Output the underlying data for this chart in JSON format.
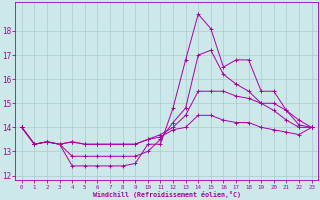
{
  "background_color": "#cce8e8",
  "grid_color": "#aacccc",
  "line_color": "#aa00aa",
  "xlabel": "Windchill (Refroidissement éolien,°C)",
  "xlim": [
    -0.5,
    23.5
  ],
  "ylim": [
    11.8,
    19.2
  ],
  "yticks": [
    12,
    13,
    14,
    15,
    16,
    17,
    18
  ],
  "xticks": [
    0,
    1,
    2,
    3,
    4,
    5,
    6,
    7,
    8,
    9,
    10,
    11,
    12,
    13,
    14,
    15,
    16,
    17,
    18,
    19,
    20,
    21,
    22,
    23
  ],
  "series": [
    {
      "x": [
        0,
        1,
        2,
        3,
        4,
        5,
        6,
        7,
        8,
        9,
        10,
        11,
        12,
        13,
        14,
        15,
        16,
        17,
        18,
        19,
        20,
        21,
        22,
        23
      ],
      "y": [
        14.0,
        13.3,
        13.4,
        13.3,
        12.4,
        12.4,
        12.4,
        12.4,
        12.4,
        12.5,
        13.3,
        13.3,
        14.8,
        16.8,
        18.7,
        18.1,
        16.5,
        16.8,
        16.8,
        15.5,
        15.5,
        14.7,
        14.1,
        14.0
      ]
    },
    {
      "x": [
        0,
        1,
        2,
        3,
        4,
        5,
        6,
        7,
        8,
        9,
        10,
        11,
        12,
        13,
        14,
        15,
        16,
        17,
        18,
        19,
        20,
        21,
        22,
        23
      ],
      "y": [
        14.0,
        13.3,
        13.4,
        13.3,
        12.8,
        12.8,
        12.8,
        12.8,
        12.8,
        12.8,
        13.0,
        13.5,
        14.2,
        14.8,
        17.0,
        17.2,
        16.2,
        15.8,
        15.5,
        15.0,
        14.7,
        14.3,
        14.0,
        14.0
      ]
    },
    {
      "x": [
        0,
        1,
        2,
        3,
        4,
        5,
        6,
        7,
        8,
        9,
        10,
        11,
        12,
        13,
        14,
        15,
        16,
        17,
        18,
        19,
        20,
        21,
        22,
        23
      ],
      "y": [
        14.0,
        13.3,
        13.4,
        13.3,
        13.4,
        13.3,
        13.3,
        13.3,
        13.3,
        13.3,
        13.5,
        13.7,
        14.0,
        14.5,
        15.5,
        15.5,
        15.5,
        15.3,
        15.2,
        15.0,
        15.0,
        14.7,
        14.3,
        14.0
      ]
    },
    {
      "x": [
        0,
        1,
        2,
        3,
        4,
        5,
        6,
        7,
        8,
        9,
        10,
        11,
        12,
        13,
        14,
        15,
        16,
        17,
        18,
        19,
        20,
        21,
        22,
        23
      ],
      "y": [
        14.0,
        13.3,
        13.4,
        13.3,
        13.4,
        13.3,
        13.3,
        13.3,
        13.3,
        13.3,
        13.5,
        13.6,
        13.9,
        14.0,
        14.5,
        14.5,
        14.3,
        14.2,
        14.2,
        14.0,
        13.9,
        13.8,
        13.7,
        14.0
      ]
    }
  ]
}
